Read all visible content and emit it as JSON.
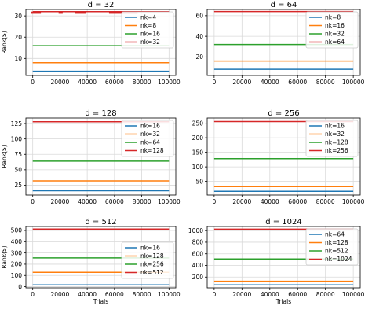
{
  "chart_data": [
    {
      "type": "line",
      "title": "d = 32",
      "xlabel": "",
      "ylabel": "Rank(S)",
      "xlim": [
        -5000,
        105000
      ],
      "ylim": [
        2,
        33
      ],
      "xticks": [
        0,
        20000,
        40000,
        60000,
        80000,
        100000
      ],
      "yticks": [
        10,
        20,
        30
      ],
      "grid": true,
      "legend_position": "top-right",
      "series": [
        {
          "name": "nk=4",
          "color": "#1f77b4",
          "y": 4
        },
        {
          "name": "nk=8",
          "color": "#ff7f0e",
          "y": 8
        },
        {
          "name": "nk=16",
          "color": "#2ca02c",
          "y": 16
        },
        {
          "name": "nk=32",
          "color": "#d62728",
          "y": 32,
          "alt_y": 31,
          "dips": [
            [
              -1000,
              6000
            ],
            [
              19000,
              22000
            ],
            [
              31000,
              39000
            ],
            [
              56000,
              77000
            ]
          ]
        }
      ]
    },
    {
      "type": "line",
      "title": "d = 64",
      "xlabel": "",
      "ylabel": "",
      "xlim": [
        -5000,
        105000
      ],
      "ylim": [
        2,
        66
      ],
      "xticks": [
        0,
        20000,
        40000,
        60000,
        80000,
        100000
      ],
      "yticks": [
        20,
        40,
        60
      ],
      "grid": true,
      "legend_position": "top-right",
      "series": [
        {
          "name": "nk=8",
          "color": "#1f77b4",
          "y": 8
        },
        {
          "name": "nk=16",
          "color": "#ff7f0e",
          "y": 16
        },
        {
          "name": "nk=32",
          "color": "#2ca02c",
          "y": 32
        },
        {
          "name": "nk=64",
          "color": "#d62728",
          "y": 64
        }
      ]
    },
    {
      "type": "line",
      "title": "d = 128",
      "xlabel": "",
      "ylabel": "Rank(S)",
      "xlim": [
        -5000,
        105000
      ],
      "ylim": [
        9,
        134
      ],
      "xticks": [
        0,
        20000,
        40000,
        60000,
        80000,
        100000
      ],
      "yticks": [
        25,
        50,
        75,
        100,
        125
      ],
      "grid": true,
      "legend_position": "top-right",
      "series": [
        {
          "name": "nk=16",
          "color": "#1f77b4",
          "y": 16
        },
        {
          "name": "nk=32",
          "color": "#ff7f0e",
          "y": 32
        },
        {
          "name": "nk=64",
          "color": "#2ca02c",
          "y": 64
        },
        {
          "name": "nk=128",
          "color": "#d62728",
          "y": 128
        }
      ]
    },
    {
      "type": "line",
      "title": "d = 256",
      "xlabel": "",
      "ylabel": "",
      "xlim": [
        -5000,
        105000
      ],
      "ylim": [
        3,
        268
      ],
      "xticks": [
        0,
        20000,
        40000,
        60000,
        80000,
        100000
      ],
      "yticks": [
        50,
        100,
        150,
        200,
        250
      ],
      "grid": true,
      "legend_position": "top-right",
      "series": [
        {
          "name": "nk=16",
          "color": "#1f77b4",
          "y": 16
        },
        {
          "name": "nk=32",
          "color": "#ff7f0e",
          "y": 32
        },
        {
          "name": "nk=128",
          "color": "#2ca02c",
          "y": 128
        },
        {
          "name": "nk=256",
          "color": "#d62728",
          "y": 256
        }
      ]
    },
    {
      "type": "line",
      "title": "d = 512",
      "xlabel": "Trials",
      "ylabel": "Rank(S)",
      "xlim": [
        -5000,
        105000
      ],
      "ylim": [
        -10,
        535
      ],
      "xticks": [
        0,
        20000,
        40000,
        60000,
        80000,
        100000
      ],
      "yticks": [
        0,
        100,
        200,
        300,
        400,
        500
      ],
      "grid": true,
      "legend_position": "center-right",
      "series": [
        {
          "name": "nk=16",
          "color": "#1f77b4",
          "y": 16
        },
        {
          "name": "nk=128",
          "color": "#ff7f0e",
          "y": 128
        },
        {
          "name": "nk=256",
          "color": "#2ca02c",
          "y": 256
        },
        {
          "name": "nk=512",
          "color": "#d62728",
          "y": 512
        }
      ]
    },
    {
      "type": "line",
      "title": "d = 1024",
      "xlabel": "Trials",
      "ylabel": "",
      "xlim": [
        -5000,
        105000
      ],
      "ylim": [
        14,
        1070
      ],
      "xticks": [
        0,
        20000,
        40000,
        60000,
        80000,
        100000
      ],
      "yticks": [
        200,
        400,
        600,
        800,
        1000
      ],
      "grid": true,
      "legend_position": "top-right",
      "series": [
        {
          "name": "nk=64",
          "color": "#1f77b4",
          "y": 64
        },
        {
          "name": "nk=128",
          "color": "#ff7f0e",
          "y": 128
        },
        {
          "name": "nk=512",
          "color": "#2ca02c",
          "y": 512
        },
        {
          "name": "nk=1024",
          "color": "#d62728",
          "y": 1024
        }
      ]
    }
  ]
}
